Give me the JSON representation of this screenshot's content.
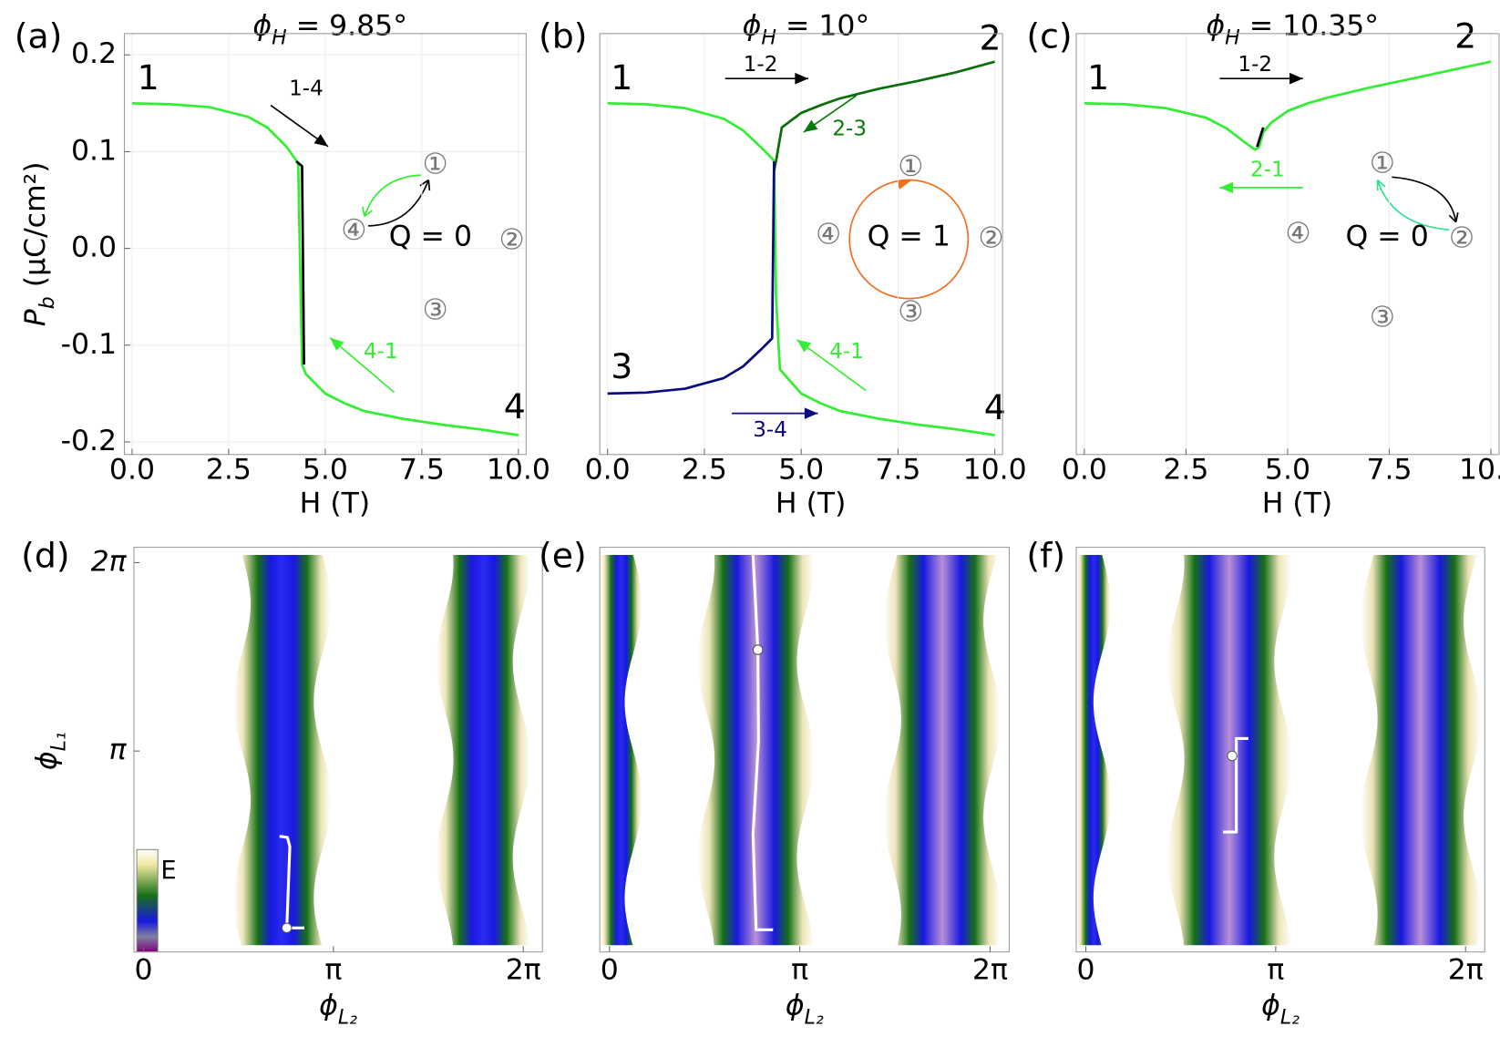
{
  "chart_data": [
    {
      "type": "line",
      "panel": "(a)",
      "title": "ϕ",
      "title_sub": "H",
      "title_rest": " = 9.85°",
      "xlabel": "H (T)",
      "ylabel": "P",
      "ylabel_sub": "b",
      "ylabel_rest": " (μC/cm²)",
      "xlim": [
        -0.2,
        10.2
      ],
      "ylim": [
        -0.213,
        0.222
      ],
      "grid": true,
      "xticks": [
        {
          "value": 0,
          "label": "0.0"
        },
        {
          "value": 2.5,
          "label": "2.5"
        },
        {
          "value": 5,
          "label": "5.0"
        },
        {
          "value": 7.5,
          "label": "7.5"
        },
        {
          "value": 10,
          "label": "10.0"
        }
      ],
      "yticks": [
        0.2,
        0.1,
        {
          "value": 0,
          "label": "0.0"
        },
        -0.1,
        -0.2
      ],
      "series": [
        {
          "color": "#33ee33",
          "x": [
            0,
            1,
            2,
            3,
            3.5,
            4,
            4.3,
            4.35,
            4.4,
            4.5,
            5,
            5.5,
            6,
            7,
            8,
            9,
            10
          ],
          "values": [
            0.15,
            0.149,
            0.146,
            0.136,
            0.125,
            0.105,
            0.088,
            -0.02,
            -0.12,
            -0.13,
            -0.15,
            -0.16,
            -0.168,
            -0.176,
            -0.182,
            -0.187,
            -0.193
          ]
        },
        {
          "color": "#000000",
          "x": [
            4.25,
            4.4,
            4.45
          ],
          "values": [
            0.09,
            0.085,
            -0.12
          ]
        }
      ],
      "annotations": [
        {
          "text": "1",
          "color": "#000000"
        },
        {
          "text": "4",
          "color": "#000000"
        },
        {
          "text": "1-4",
          "color": "#000000"
        },
        {
          "text": "4-1",
          "color": "#33ee33"
        },
        {
          "text": "①",
          "color": "#777777"
        },
        {
          "text": "②",
          "color": "#777777"
        },
        {
          "text": "③",
          "color": "#777777"
        },
        {
          "text": "④",
          "color": "#777777"
        },
        {
          "text": "Q = 0",
          "color": "#000000"
        }
      ]
    },
    {
      "type": "line",
      "panel": "(b)",
      "title": "ϕ",
      "title_sub": "H",
      "title_rest": " = 10°",
      "xlabel": "H (T)",
      "xlim": [
        -0.2,
        10.2
      ],
      "ylim": [
        -0.213,
        0.222
      ],
      "grid": true,
      "xticks": [
        {
          "value": 0,
          "label": "0.0"
        },
        {
          "value": 2.5,
          "label": "2.5"
        },
        {
          "value": 5,
          "label": "5.0"
        },
        {
          "value": 7.5,
          "label": "7.5"
        },
        {
          "value": 10,
          "label": "10.0"
        }
      ],
      "series": [
        {
          "color": "#33ee33",
          "x": [
            0,
            1,
            2,
            3,
            3.5,
            4,
            4.25,
            4.3,
            4.35,
            4.45,
            5,
            5.5,
            6,
            7,
            8,
            9,
            10
          ],
          "values": [
            0.15,
            0.149,
            0.145,
            0.134,
            0.122,
            0.103,
            0.093,
            0.09,
            -0.05,
            -0.125,
            -0.15,
            -0.16,
            -0.168,
            -0.176,
            -0.182,
            -0.187,
            -0.193
          ]
        },
        {
          "color": "#0a6e0a",
          "x": [
            4.3,
            4.35,
            4.5,
            5,
            5.5,
            6,
            7,
            8,
            9,
            10
          ],
          "values": [
            0.08,
            0.09,
            0.125,
            0.14,
            0.148,
            0.155,
            0.165,
            0.173,
            0.182,
            0.193
          ]
        },
        {
          "color": "#0b0b80",
          "x": [
            0,
            1,
            2,
            3,
            3.5,
            4,
            4.25,
            4.3
          ],
          "values": [
            -0.15,
            -0.149,
            -0.145,
            -0.134,
            -0.122,
            -0.103,
            -0.093,
            0.09
          ]
        }
      ],
      "annotations": [
        {
          "text": "1",
          "color": "#000000"
        },
        {
          "text": "2",
          "color": "#000000"
        },
        {
          "text": "3",
          "color": "#000000"
        },
        {
          "text": "4",
          "color": "#000000"
        },
        {
          "text": "1-2",
          "color": "#000000"
        },
        {
          "text": "2-3",
          "color": "#0a7a0a"
        },
        {
          "text": "4-1",
          "color": "#33ee33"
        },
        {
          "text": "3-4",
          "color": "#0b0b80"
        },
        {
          "text": "①",
          "color": "#777777"
        },
        {
          "text": "②",
          "color": "#777777"
        },
        {
          "text": "③",
          "color": "#777777"
        },
        {
          "text": "④",
          "color": "#777777"
        },
        {
          "text": "Q = 1",
          "color": "#000000"
        }
      ]
    },
    {
      "type": "line",
      "panel": "(c)",
      "title": "ϕ",
      "title_sub": "H",
      "title_rest": " = 10.35°",
      "xlabel": "H (T)",
      "xlim": [
        -0.2,
        10.2
      ],
      "ylim": [
        -0.213,
        0.222
      ],
      "grid": true,
      "xticks": [
        {
          "value": 0,
          "label": "0.0"
        },
        {
          "value": 2.5,
          "label": "2.5"
        },
        {
          "value": 5,
          "label": "5.0"
        },
        {
          "value": 7.5,
          "label": "7.5"
        },
        {
          "value": 10,
          "label": "10.0"
        }
      ],
      "series": [
        {
          "color": "#33ee33",
          "x": [
            0,
            1,
            2,
            3,
            3.5,
            4,
            4.2,
            4.3,
            4.4,
            4.6,
            5,
            5.5,
            6,
            7,
            8,
            9,
            10
          ],
          "values": [
            0.15,
            0.149,
            0.145,
            0.135,
            0.124,
            0.108,
            0.102,
            0.105,
            0.12,
            0.13,
            0.142,
            0.15,
            0.156,
            0.166,
            0.175,
            0.184,
            0.193
          ]
        },
        {
          "color": "#000000",
          "x": [
            4.25,
            4.4
          ],
          "values": [
            0.105,
            0.125
          ]
        }
      ],
      "annotations": [
        {
          "text": "1",
          "color": "#000000"
        },
        {
          "text": "2",
          "color": "#000000"
        },
        {
          "text": "1-2",
          "color": "#000000"
        },
        {
          "text": "2-1",
          "color": "#33ee33"
        },
        {
          "text": "①",
          "color": "#777777"
        },
        {
          "text": "②",
          "color": "#777777"
        },
        {
          "text": "③",
          "color": "#777777"
        },
        {
          "text": "④",
          "color": "#777777"
        },
        {
          "text": "Q = 0",
          "color": "#000000"
        }
      ]
    },
    {
      "type": "heatmap",
      "panel": "(d)",
      "xlabel": "ϕ",
      "xlabel_sub": "L₂",
      "ylabel": "ϕ",
      "ylabel_sub": "L₁",
      "colorbar_label": "E",
      "xlim": [
        -0.16,
        6.6
      ],
      "ylim": [
        -0.21,
        6.54
      ],
      "xticks": [
        {
          "value": 0,
          "label": "0"
        },
        {
          "value": 3.1416,
          "label": "π"
        },
        {
          "value": 6.2832,
          "label": "2π"
        }
      ],
      "yticks": [
        {
          "value": 3.1416,
          "label": "π"
        },
        {
          "value": 6.2832,
          "label": "2π"
        }
      ],
      "series": [
        {
          "color": "#ffffff",
          "x": [
            2.66,
            2.37,
            2.42,
            2.38,
            2.25
          ],
          "values": [
            0.19,
            0.19,
            1.55,
            1.7,
            1.72
          ]
        },
        {
          "color": "#ffffff",
          "marker": true,
          "x": [
            2.37
          ],
          "values": [
            0.19
          ]
        }
      ]
    },
    {
      "type": "heatmap",
      "panel": "(e)",
      "xlabel": "ϕ",
      "xlabel_sub": "L₂",
      "xlim": [
        -0.16,
        6.6
      ],
      "ylim": [
        -0.21,
        6.54
      ],
      "xticks": [
        {
          "value": 0,
          "label": "0"
        },
        {
          "value": 3.1416,
          "label": "π"
        },
        {
          "value": 6.2832,
          "label": "2π"
        }
      ],
      "series": [
        {
          "color": "#ffffff",
          "x": [
            2.37,
            2.45,
            2.46,
            2.37,
            2.42,
            2.7
          ],
          "values": [
            6.41,
            4.83,
            3.3,
            1.75,
            0.16,
            0.16
          ]
        },
        {
          "color": "#ffffff",
          "marker": true,
          "x": [
            2.45
          ],
          "values": [
            4.83
          ]
        }
      ]
    },
    {
      "type": "heatmap",
      "panel": "(f)",
      "xlabel": "ϕ",
      "xlabel_sub": "L₂",
      "xlim": [
        -0.16,
        6.6
      ],
      "ylim": [
        -0.21,
        6.54
      ],
      "xticks": [
        {
          "value": 0,
          "label": "0"
        },
        {
          "value": 3.1416,
          "label": "π"
        },
        {
          "value": 6.2832,
          "label": "2π"
        }
      ],
      "series": [
        {
          "color": "#ffffff",
          "x": [
            2.69,
            2.49,
            2.49,
            2.27
          ],
          "values": [
            3.35,
            3.35,
            1.79,
            1.79
          ]
        },
        {
          "color": "#ffffff",
          "marker": true,
          "x": [
            2.42
          ],
          "values": [
            3.06
          ]
        }
      ]
    }
  ]
}
